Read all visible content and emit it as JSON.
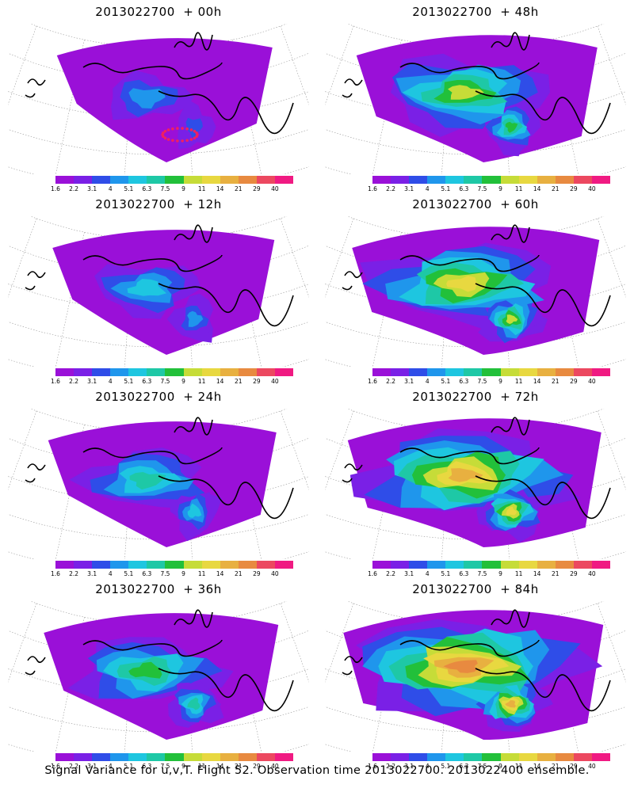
{
  "panels": [
    {
      "title": "2013022700  + 00h",
      "spread": 0.15
    },
    {
      "title": "2013022700  + 48h",
      "spread": 0.55
    },
    {
      "title": "2013022700  + 12h",
      "spread": 0.25
    },
    {
      "title": "2013022700  + 60h",
      "spread": 0.65
    },
    {
      "title": "2013022700  + 24h",
      "spread": 0.35
    },
    {
      "title": "2013022700  + 72h",
      "spread": 0.75
    },
    {
      "title": "2013022700  + 36h",
      "spread": 0.45
    },
    {
      "title": "2013022700  + 84h",
      "spread": 0.85
    }
  ],
  "colorbar": {
    "labels": [
      "1.6",
      "2.2",
      "3.1",
      "4",
      "5.1",
      "6.3",
      "7.5",
      "9",
      "11",
      "14",
      "21",
      "29",
      "40"
    ],
    "colors": [
      "#9a10d8",
      "#7a20e6",
      "#2f4de8",
      "#1f96ec",
      "#1ec6e0",
      "#1ec8a6",
      "#22c03a",
      "#c6dc38",
      "#e8d840",
      "#e8b040",
      "#e88a40",
      "#ec4860",
      "#f01a82"
    ]
  },
  "footer": "Signal Variance for u,v,T. Flight 52. Observation time 2013022700. 2013022400 ensemble."
}
